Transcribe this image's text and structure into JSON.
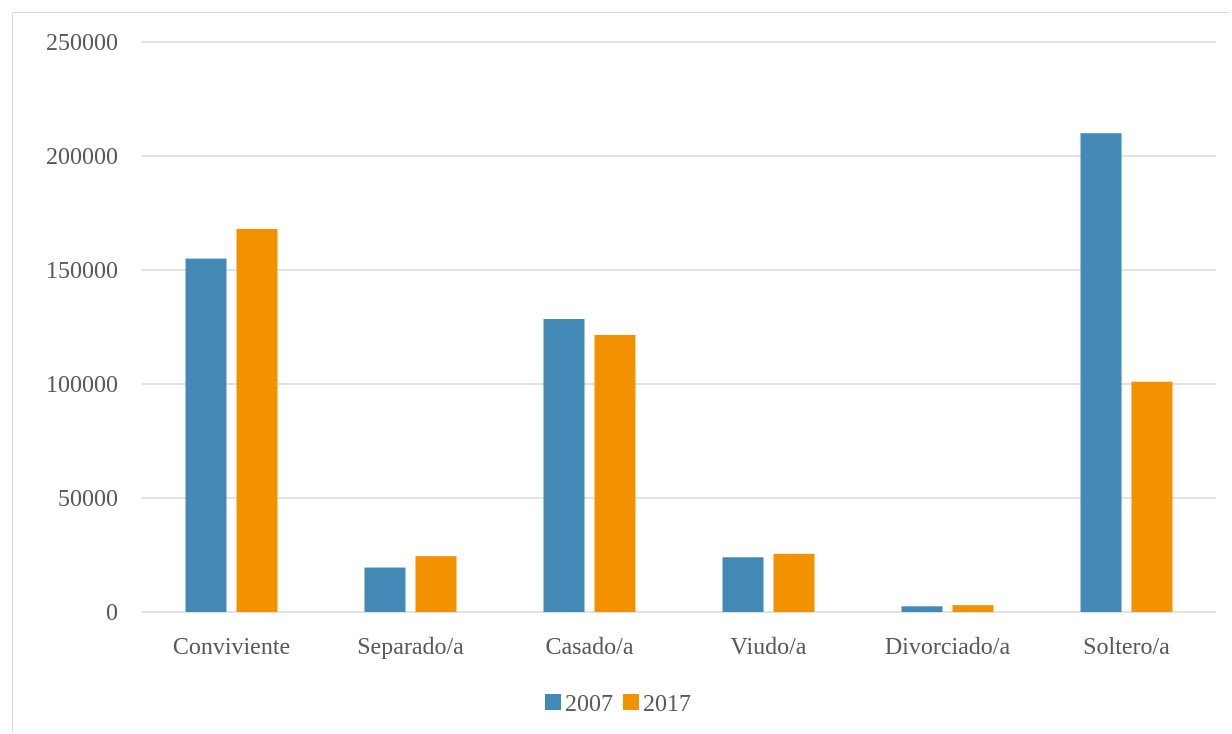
{
  "chart_data": {
    "type": "bar",
    "title": "",
    "xlabel": "",
    "ylabel": "",
    "categories": [
      "Conviviente",
      "Separado/a",
      "Casado/a",
      "Viudo/a",
      "Divorciado/a",
      "Soltero/a"
    ],
    "series": [
      {
        "name": "2007",
        "color": "#4389b5",
        "values": [
          155000,
          19500,
          128500,
          24000,
          2500,
          210000
        ]
      },
      {
        "name": "2017",
        "color": "#f39200",
        "values": [
          168000,
          24500,
          121500,
          25500,
          3000,
          101000
        ]
      }
    ],
    "ylim": [
      0,
      250000
    ],
    "yticks": [
      0,
      50000,
      100000,
      150000,
      200000,
      250000
    ],
    "grid": true,
    "legend_position": "bottom"
  }
}
